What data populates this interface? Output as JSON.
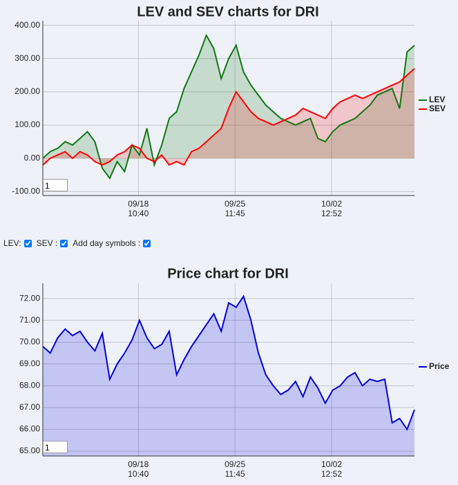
{
  "chart_data": [
    {
      "type": "line",
      "title": "LEV and SEV charts for DRI",
      "x": [
        0,
        2,
        4,
        6,
        8,
        10,
        12,
        14,
        16,
        18,
        20,
        22,
        24,
        26,
        28,
        30,
        32,
        34,
        36,
        38,
        40,
        42,
        44,
        46,
        48,
        50,
        52,
        54,
        56,
        58,
        60,
        62,
        64,
        66,
        68,
        70,
        72,
        74,
        76,
        78,
        80,
        82,
        84,
        86,
        88,
        90,
        92,
        94,
        96,
        98,
        100
      ],
      "series": [
        {
          "name": "LEV",
          "color": "#117711",
          "values": [
            0,
            20,
            30,
            50,
            40,
            60,
            80,
            50,
            -30,
            -60,
            -10,
            -40,
            40,
            10,
            90,
            -20,
            40,
            120,
            140,
            210,
            260,
            310,
            370,
            330,
            240,
            300,
            340,
            260,
            220,
            190,
            160,
            140,
            120,
            110,
            100,
            110,
            120,
            60,
            50,
            80,
            100,
            110,
            120,
            140,
            160,
            190,
            200,
            210,
            150,
            320,
            340
          ]
        },
        {
          "name": "SEV",
          "color": "#ff0000",
          "values": [
            -20,
            0,
            10,
            20,
            0,
            20,
            10,
            -10,
            -20,
            -10,
            10,
            20,
            40,
            30,
            0,
            -10,
            10,
            -20,
            -10,
            -20,
            20,
            30,
            50,
            70,
            90,
            150,
            200,
            170,
            140,
            120,
            110,
            100,
            110,
            120,
            130,
            150,
            140,
            130,
            120,
            150,
            170,
            180,
            190,
            180,
            190,
            200,
            210,
            220,
            230,
            250,
            270
          ]
        }
      ],
      "xlim": [
        0,
        100
      ],
      "xticks": [
        {
          "value": 25.7,
          "label": "09/18",
          "time": "10:40"
        },
        {
          "value": 51.7,
          "label": "09/25",
          "time": "11:45"
        },
        {
          "value": 77.7,
          "label": "10/02",
          "time": "12:52"
        }
      ],
      "ylim": [
        -112,
        414
      ],
      "yticks": [
        {
          "value": -100,
          "label": "-100.00"
        },
        {
          "value": 0,
          "label": "0.00"
        },
        {
          "value": 100,
          "label": "100.00"
        },
        {
          "value": 200,
          "label": "200.00"
        },
        {
          "value": 300,
          "label": "300.00"
        },
        {
          "value": 400,
          "label": "400.00"
        }
      ],
      "grid": true,
      "input": "1"
    },
    {
      "type": "line",
      "title": "Price chart for DRI",
      "x": [
        0,
        2,
        4,
        6,
        8,
        10,
        12,
        14,
        16,
        18,
        20,
        22,
        24,
        26,
        28,
        30,
        32,
        34,
        36,
        38,
        40,
        42,
        44,
        46,
        48,
        50,
        52,
        54,
        56,
        58,
        60,
        62,
        64,
        66,
        68,
        70,
        72,
        74,
        76,
        78,
        80,
        82,
        84,
        86,
        88,
        90,
        92,
        94,
        96,
        98,
        100
      ],
      "series": [
        {
          "name": "Price",
          "color": "#0000dd",
          "values": [
            69.8,
            69.5,
            70.2,
            70.6,
            70.3,
            70.5,
            70.0,
            69.6,
            70.4,
            68.3,
            69.0,
            69.5,
            70.1,
            71.0,
            70.2,
            69.7,
            69.9,
            70.5,
            68.5,
            69.2,
            69.8,
            70.3,
            70.8,
            71.3,
            70.5,
            71.8,
            71.6,
            72.1,
            71.0,
            69.5,
            68.5,
            68.0,
            67.6,
            67.8,
            68.2,
            67.5,
            68.4,
            67.9,
            67.2,
            67.8,
            68.0,
            68.4,
            68.6,
            68.0,
            68.3,
            68.2,
            68.3,
            66.3,
            66.5,
            66.0,
            66.9
          ]
        }
      ],
      "xlim": [
        0,
        100
      ],
      "xticks": [
        {
          "value": 25.7,
          "label": "09/18",
          "time": "10:40"
        },
        {
          "value": 51.7,
          "label": "09/25",
          "time": "11:45"
        },
        {
          "value": 77.7,
          "label": "10/02",
          "time": "12:52"
        }
      ],
      "ylim": [
        64.78,
        72.7
      ],
      "yticks": [
        {
          "value": 65,
          "label": "65.00"
        },
        {
          "value": 66,
          "label": "66.00"
        },
        {
          "value": 67,
          "label": "67.00"
        },
        {
          "value": 68,
          "label": "68.00"
        },
        {
          "value": 69,
          "label": "69.00"
        },
        {
          "value": 70,
          "label": "70.00"
        },
        {
          "value": 71,
          "label": "71.00"
        },
        {
          "value": 72,
          "label": "72.00"
        }
      ],
      "grid": true,
      "input": "1"
    }
  ],
  "controls": {
    "lev": "LEV:",
    "sev": "SEV :",
    "day": "Add day symbols :"
  }
}
